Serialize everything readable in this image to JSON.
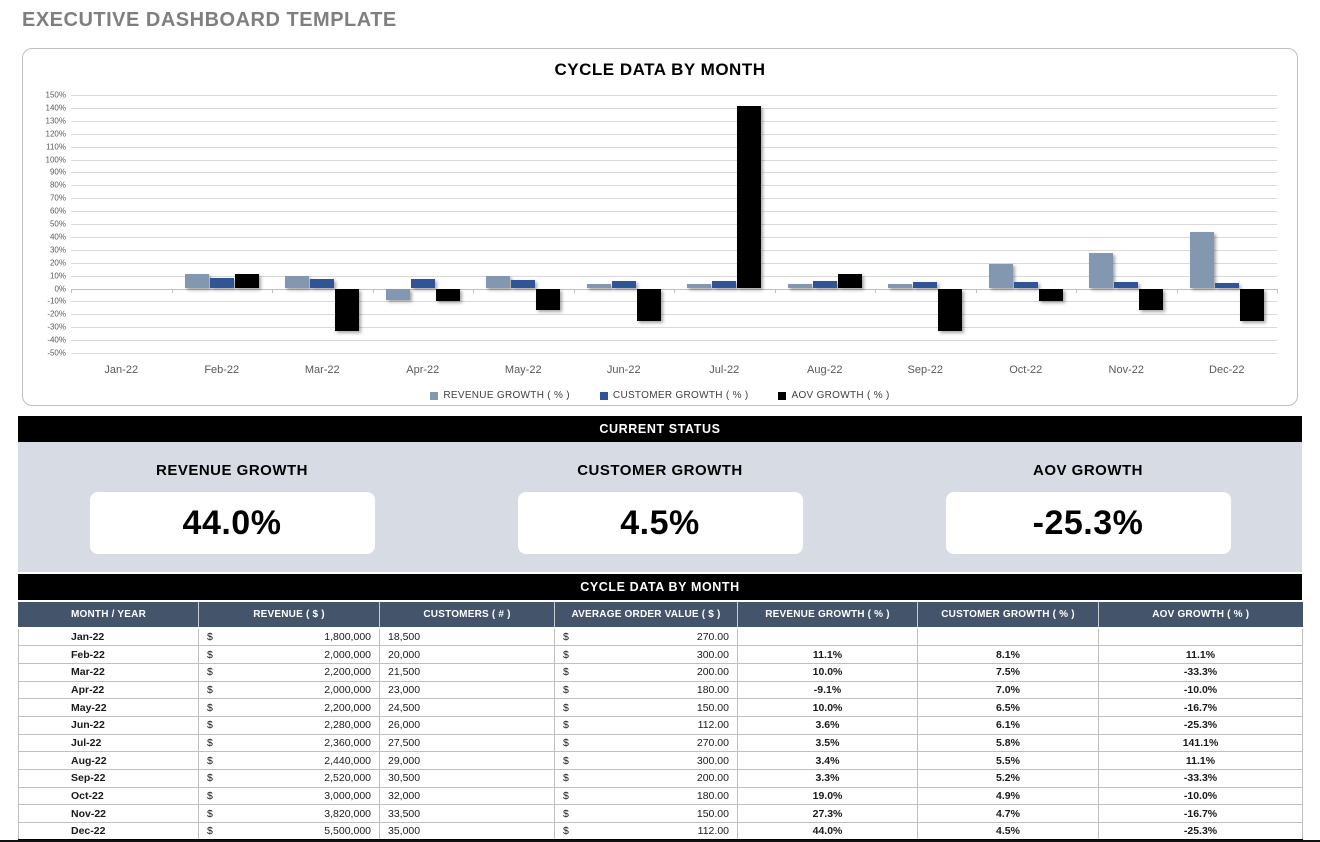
{
  "page_title": "EXECUTIVE DASHBOARD TEMPLATE",
  "chart": {
    "title": "CYCLE DATA BY MONTH"
  },
  "chart_data": {
    "type": "bar",
    "title": "CYCLE DATA BY MONTH",
    "categories": [
      "Jan-22",
      "Feb-22",
      "Mar-22",
      "Apr-22",
      "May-22",
      "Jun-22",
      "Jul-22",
      "Aug-22",
      "Sep-22",
      "Oct-22",
      "Nov-22",
      "Dec-22"
    ],
    "series": [
      {
        "name": "REVENUE GROWTH  ( % )",
        "color": "#8497b0",
        "values": [
          null,
          11.1,
          10.0,
          -9.1,
          10.0,
          3.6,
          3.5,
          3.4,
          3.3,
          19.0,
          27.3,
          44.0
        ]
      },
      {
        "name": "CUSTOMER GROWTH  ( % )",
        "color": "#2f5597",
        "values": [
          null,
          8.1,
          7.5,
          7.0,
          6.5,
          6.1,
          5.8,
          5.5,
          5.2,
          4.9,
          4.7,
          4.5
        ]
      },
      {
        "name": "AOV GROWTH  ( % )",
        "color": "#000000",
        "values": [
          null,
          11.1,
          -33.3,
          -10.0,
          -16.7,
          -25.3,
          141.1,
          11.1,
          -33.3,
          -10.0,
          -16.7,
          -25.3
        ]
      }
    ],
    "xlabel": "",
    "ylabel": "",
    "ylim": [
      -50,
      150
    ],
    "ytick_step": 10,
    "ytick_suffix": "%",
    "grid": true,
    "legend_position": "bottom"
  },
  "status": {
    "header": "CURRENT STATUS",
    "cards": [
      {
        "label": "REVENUE GROWTH",
        "value": "44.0%"
      },
      {
        "label": "CUSTOMER GROWTH",
        "value": "4.5%"
      },
      {
        "label": "AOV GROWTH",
        "value": "-25.3%"
      }
    ]
  },
  "table": {
    "header": "CYCLE DATA BY MONTH",
    "currency_symbol": "$",
    "columns": [
      "MONTH / YEAR",
      "REVENUE  ( $ )",
      "CUSTOMERS  ( # )",
      "AVERAGE ORDER VALUE  ( $ )",
      "REVENUE GROWTH  ( % )",
      "CUSTOMER GROWTH  ( % )",
      "AOV GROWTH  ( % )"
    ],
    "rows": [
      {
        "month": "Jan-22",
        "revenue": "1,800,000",
        "customers": "18,500",
        "aov": "270.00",
        "revenue_growth": "",
        "customer_growth": "",
        "aov_growth": ""
      },
      {
        "month": "Feb-22",
        "revenue": "2,000,000",
        "customers": "20,000",
        "aov": "300.00",
        "revenue_growth": "11.1%",
        "customer_growth": "8.1%",
        "aov_growth": "11.1%"
      },
      {
        "month": "Mar-22",
        "revenue": "2,200,000",
        "customers": "21,500",
        "aov": "200.00",
        "revenue_growth": "10.0%",
        "customer_growth": "7.5%",
        "aov_growth": "-33.3%"
      },
      {
        "month": "Apr-22",
        "revenue": "2,000,000",
        "customers": "23,000",
        "aov": "180.00",
        "revenue_growth": "-9.1%",
        "customer_growth": "7.0%",
        "aov_growth": "-10.0%"
      },
      {
        "month": "May-22",
        "revenue": "2,200,000",
        "customers": "24,500",
        "aov": "150.00",
        "revenue_growth": "10.0%",
        "customer_growth": "6.5%",
        "aov_growth": "-16.7%"
      },
      {
        "month": "Jun-22",
        "revenue": "2,280,000",
        "customers": "26,000",
        "aov": "112.00",
        "revenue_growth": "3.6%",
        "customer_growth": "6.1%",
        "aov_growth": "-25.3%"
      },
      {
        "month": "Jul-22",
        "revenue": "2,360,000",
        "customers": "27,500",
        "aov": "270.00",
        "revenue_growth": "3.5%",
        "customer_growth": "5.8%",
        "aov_growth": "141.1%"
      },
      {
        "month": "Aug-22",
        "revenue": "2,440,000",
        "customers": "29,000",
        "aov": "300.00",
        "revenue_growth": "3.4%",
        "customer_growth": "5.5%",
        "aov_growth": "11.1%"
      },
      {
        "month": "Sep-22",
        "revenue": "2,520,000",
        "customers": "30,500",
        "aov": "200.00",
        "revenue_growth": "3.3%",
        "customer_growth": "5.2%",
        "aov_growth": "-33.3%"
      },
      {
        "month": "Oct-22",
        "revenue": "3,000,000",
        "customers": "32,000",
        "aov": "180.00",
        "revenue_growth": "19.0%",
        "customer_growth": "4.9%",
        "aov_growth": "-10.0%"
      },
      {
        "month": "Nov-22",
        "revenue": "3,820,000",
        "customers": "33,500",
        "aov": "150.00",
        "revenue_growth": "27.3%",
        "customer_growth": "4.7%",
        "aov_growth": "-16.7%"
      },
      {
        "month": "Dec-22",
        "revenue": "5,500,000",
        "customers": "35,000",
        "aov": "112.00",
        "revenue_growth": "44.0%",
        "customer_growth": "4.5%",
        "aov_growth": "-25.3%"
      }
    ]
  }
}
